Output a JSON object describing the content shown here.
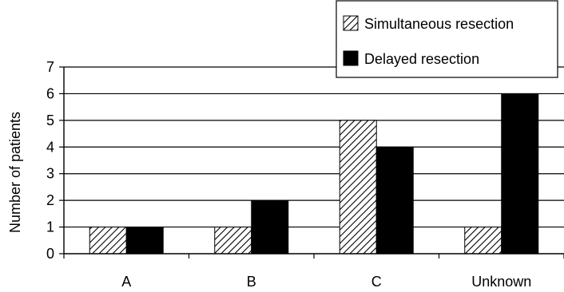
{
  "chart_data": {
    "type": "bar",
    "title": "",
    "xlabel": "",
    "ylabel": "Number of patients",
    "categories": [
      "A",
      "B",
      "C",
      "Unknown"
    ],
    "ylim": [
      0,
      7
    ],
    "yticks": [
      "0",
      "1",
      "2",
      "3",
      "4",
      "5",
      "6",
      "7"
    ],
    "grid": true,
    "legend_position": "top-right",
    "series": [
      {
        "name": "Simultaneous resection",
        "values": [
          1,
          1,
          5,
          1
        ],
        "fill": "hatched"
      },
      {
        "name": "Delayed resection",
        "values": [
          1,
          2,
          4,
          6
        ],
        "fill": "solid"
      }
    ],
    "colors": {
      "bar": "#000000",
      "hatch_background": "#ffffff",
      "axis": "#000000",
      "grid": "#000000"
    }
  }
}
